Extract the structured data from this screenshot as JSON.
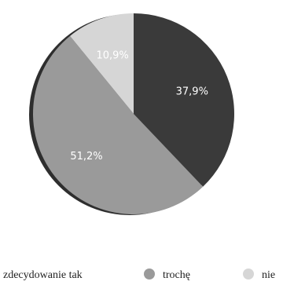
{
  "chart_data": {
    "type": "pie",
    "title": "",
    "legend_placement": "bottom",
    "slices": [
      {
        "name": "zdecydowanie tak",
        "value": 37.9,
        "label": "37,9%",
        "color": "#3a3a3a"
      },
      {
        "name": "trochę",
        "value": 51.2,
        "label": "51,2%",
        "color": "#9a9a9a"
      },
      {
        "name": "nie",
        "value": 10.9,
        "label": "10,9%",
        "color": "#d6d6d6"
      }
    ],
    "start_angle_deg": 0,
    "direction": "clockwise"
  },
  "colors": {
    "shadow": "#2e2e2e",
    "background": "#ffffff"
  }
}
